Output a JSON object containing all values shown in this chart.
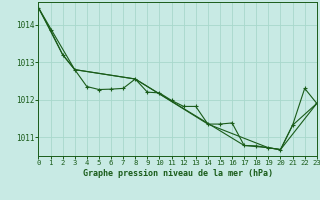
{
  "title": "Graphe pression niveau de la mer (hPa)",
  "bg_color": "#c8eae4",
  "grid_color": "#a8d8cc",
  "line_color": "#1a5c1a",
  "xlim": [
    0,
    23
  ],
  "ylim": [
    1010.5,
    1014.6
  ],
  "yticks": [
    1011,
    1012,
    1013,
    1014
  ],
  "xticks": [
    0,
    1,
    2,
    3,
    4,
    5,
    6,
    7,
    8,
    9,
    10,
    11,
    12,
    13,
    14,
    15,
    16,
    17,
    18,
    19,
    20,
    21,
    22,
    23
  ],
  "series1_x": [
    0,
    1,
    2,
    3,
    4,
    5,
    6,
    7,
    8,
    9,
    10,
    11,
    12,
    13,
    14,
    15,
    16,
    17,
    18,
    19,
    20,
    21,
    22,
    23
  ],
  "series1_y": [
    1014.45,
    1013.85,
    1013.2,
    1012.8,
    1012.35,
    1012.27,
    1012.28,
    1012.3,
    1012.55,
    1012.2,
    1012.18,
    1011.98,
    1011.82,
    1011.82,
    1011.35,
    1011.35,
    1011.38,
    1010.78,
    1010.77,
    1010.72,
    1010.67,
    1011.32,
    1012.3,
    1011.9
  ],
  "series2_x": [
    0,
    2,
    3,
    8,
    17,
    19,
    20,
    23
  ],
  "series2_y": [
    1014.45,
    1013.2,
    1012.8,
    1012.55,
    1010.78,
    1010.72,
    1010.67,
    1011.9
  ],
  "series3_x": [
    0,
    3,
    8,
    14,
    19,
    20,
    21,
    23
  ],
  "series3_y": [
    1014.45,
    1012.8,
    1012.55,
    1011.35,
    1010.72,
    1010.67,
    1011.32,
    1011.9
  ]
}
